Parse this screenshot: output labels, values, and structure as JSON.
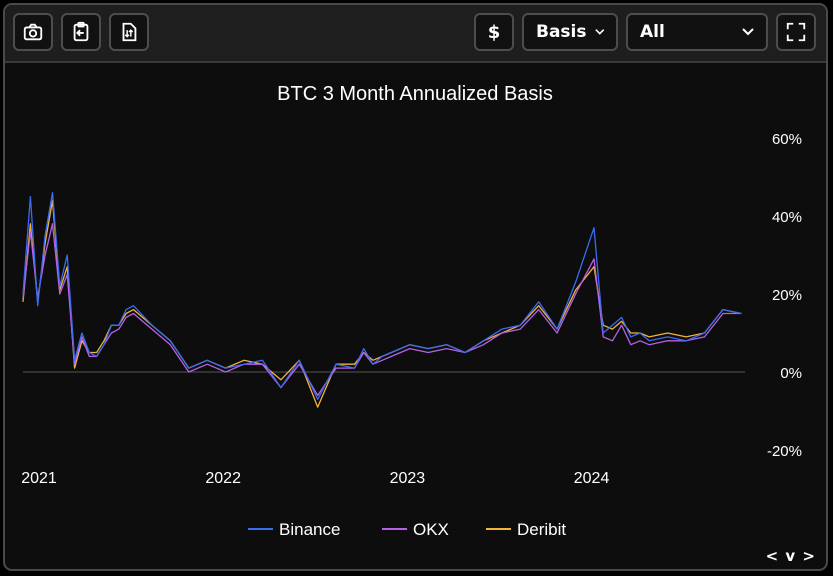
{
  "toolbar": {
    "icons": [
      "camera-icon",
      "clipboard-copy-icon",
      "file-download-icon"
    ],
    "currency_symbol": "$",
    "metric_select": "Basis",
    "range_select": "All",
    "fullscreen_icon": "fullscreen-icon"
  },
  "nav": {
    "prev": "<",
    "next": ">",
    "mid": "v"
  },
  "colors": {
    "Binance": "#3a6cf0",
    "OKX": "#b660e8",
    "Deribit": "#f4b33a",
    "zero_line": "#555555",
    "background": "#0d0d0d"
  },
  "chart_data": {
    "type": "line",
    "title": "BTC 3 Month Annualized Basis",
    "xlabel": "",
    "ylabel": "",
    "x_ticks": [
      "2021",
      "2022",
      "2023",
      "2024"
    ],
    "y_ticks": [
      "60%",
      "40%",
      "20%",
      "0%",
      "-20%"
    ],
    "y_tick_values": [
      60,
      40,
      20,
      0,
      -20
    ],
    "ylim": [
      -20,
      60
    ],
    "xlim": [
      2021.0,
      2024.92
    ],
    "grid": false,
    "legend_position": "bottom",
    "x": [
      2021.0,
      2021.04,
      2021.08,
      2021.12,
      2021.16,
      2021.2,
      2021.24,
      2021.28,
      2021.32,
      2021.36,
      2021.4,
      2021.44,
      2021.48,
      2021.52,
      2021.56,
      2021.6,
      2021.7,
      2021.8,
      2021.9,
      2022.0,
      2022.1,
      2022.2,
      2022.3,
      2022.4,
      2022.5,
      2022.6,
      2022.7,
      2022.8,
      2022.85,
      2022.9,
      2022.95,
      2023.0,
      2023.1,
      2023.2,
      2023.3,
      2023.4,
      2023.5,
      2023.6,
      2023.7,
      2023.8,
      2023.9,
      2024.0,
      2024.1,
      2024.15,
      2024.2,
      2024.25,
      2024.3,
      2024.35,
      2024.4,
      2024.5,
      2024.6,
      2024.7,
      2024.8,
      2024.9
    ],
    "series": [
      {
        "name": "Binance",
        "values": [
          20,
          45,
          17,
          35,
          46,
          22,
          30,
          3,
          10,
          5,
          4,
          7,
          12,
          12,
          16,
          17,
          12,
          8,
          1,
          3,
          1,
          2,
          3,
          -4,
          3,
          -7,
          2,
          1,
          6,
          2,
          4,
          5,
          7,
          6,
          7,
          5,
          8,
          11,
          12,
          18,
          11,
          23,
          37,
          10,
          12,
          14,
          9,
          10,
          8,
          9,
          8,
          10,
          16,
          15
        ]
      },
      {
        "name": "OKX",
        "values": [
          19,
          36,
          19,
          30,
          38,
          20,
          25,
          2,
          9,
          4,
          4,
          7,
          10,
          11,
          14,
          15,
          11,
          7,
          0,
          2,
          0,
          2,
          2,
          -4,
          2,
          -6,
          1,
          1,
          5,
          2,
          3,
          4,
          6,
          5,
          6,
          5,
          7,
          10,
          11,
          16,
          10,
          20,
          29,
          9,
          8,
          12,
          7,
          8,
          7,
          8,
          8,
          9,
          15,
          15
        ]
      },
      {
        "name": "Deribit",
        "values": [
          18,
          38,
          18,
          33,
          44,
          21,
          27,
          1,
          8,
          5,
          5,
          8,
          12,
          12,
          15,
          16,
          12,
          8,
          1,
          3,
          1,
          3,
          2,
          -2,
          3,
          -9,
          2,
          2,
          5,
          3,
          4,
          5,
          7,
          6,
          7,
          5,
          8,
          10,
          12,
          17,
          11,
          21,
          27,
          12,
          11,
          13,
          10,
          10,
          9,
          10,
          9,
          10,
          16,
          15
        ]
      }
    ]
  }
}
